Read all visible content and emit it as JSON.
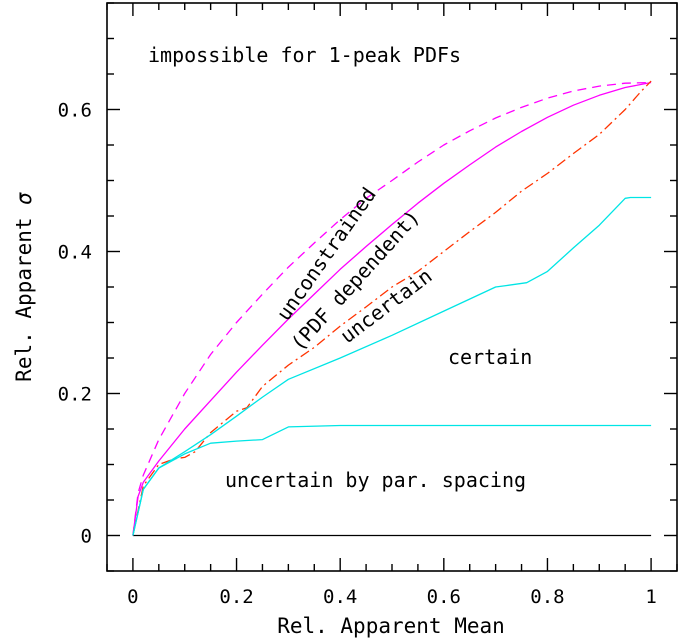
{
  "chart_data": {
    "type": "line",
    "xlabel": "Rel. Apparent Mean",
    "ylabel_text": "Rel. Apparent ",
    "ylabel_symbol": "σ",
    "xlim": [
      -0.05,
      1.05
    ],
    "ylim": [
      -0.05,
      0.75
    ],
    "x_ticks": [
      0,
      0.2,
      0.4,
      0.6,
      0.8,
      1
    ],
    "x_tick_labels": [
      "0",
      "0.2",
      "0.4",
      "0.6",
      "0.8",
      "1"
    ],
    "y_ticks": [
      0,
      0.2,
      0.4,
      0.6
    ],
    "y_tick_labels": [
      "0",
      "0.2",
      "0.4",
      "0.6"
    ],
    "x_minor_step": 0.05,
    "y_minor_step": 0.05,
    "grid": false,
    "annotations": {
      "impossible": "impossible for 1-peak PDFs",
      "unconstrained": "unconstrained",
      "pdf_dependent": "(PDF dependent)",
      "uncertain": "uncertain",
      "certain": "certain",
      "uncertain_spacing": "uncertain by par. spacing"
    },
    "series": [
      {
        "key": "baseline",
        "color": "#000000",
        "dash": "",
        "x": [
          0,
          1
        ],
        "y": [
          0,
          0
        ]
      },
      {
        "key": "dashed_magenta",
        "color": "#ff00ff",
        "dash": "9,6",
        "x": [
          0,
          0.01,
          0.02,
          0.05,
          0.1,
          0.15,
          0.2,
          0.25,
          0.3,
          0.35,
          0.4,
          0.45,
          0.5,
          0.55,
          0.6,
          0.65,
          0.7,
          0.75,
          0.8,
          0.85,
          0.9,
          0.95,
          1.0
        ],
        "y": [
          0,
          0.06,
          0.085,
          0.135,
          0.2,
          0.255,
          0.3,
          0.34,
          0.378,
          0.412,
          0.445,
          0.475,
          0.5,
          0.526,
          0.55,
          0.57,
          0.588,
          0.603,
          0.616,
          0.626,
          0.633,
          0.637,
          0.638
        ]
      },
      {
        "key": "solid_magenta",
        "color": "#ff00ff",
        "dash": "",
        "x": [
          0,
          0.01,
          0.02,
          0.05,
          0.1,
          0.15,
          0.2,
          0.25,
          0.3,
          0.35,
          0.4,
          0.45,
          0.5,
          0.55,
          0.6,
          0.65,
          0.7,
          0.75,
          0.8,
          0.85,
          0.9,
          0.95,
          1.0
        ],
        "y": [
          0,
          0.055,
          0.075,
          0.105,
          0.15,
          0.19,
          0.23,
          0.268,
          0.305,
          0.34,
          0.375,
          0.407,
          0.438,
          0.468,
          0.496,
          0.522,
          0.547,
          0.569,
          0.589,
          0.606,
          0.62,
          0.631,
          0.638
        ]
      },
      {
        "key": "dashdot_red",
        "color": "#ff3300",
        "dash": "10,4,2,4",
        "x": [
          0,
          0.02,
          0.05,
          0.08,
          0.1,
          0.12,
          0.15,
          0.2,
          0.22,
          0.25,
          0.3,
          0.35,
          0.4,
          0.45,
          0.5,
          0.55,
          0.6,
          0.65,
          0.7,
          0.75,
          0.8,
          0.85,
          0.9,
          0.95,
          0.98,
          1.0
        ],
        "y": [
          0,
          0.07,
          0.1,
          0.108,
          0.11,
          0.118,
          0.145,
          0.175,
          0.18,
          0.21,
          0.24,
          0.265,
          0.295,
          0.322,
          0.35,
          0.372,
          0.4,
          0.428,
          0.455,
          0.485,
          0.51,
          0.538,
          0.565,
          0.6,
          0.625,
          0.64
        ]
      },
      {
        "key": "cyan_upper",
        "color": "#00e5e5",
        "dash": "",
        "x": [
          0,
          0.02,
          0.05,
          0.1,
          0.15,
          0.2,
          0.25,
          0.3,
          0.4,
          0.5,
          0.6,
          0.7,
          0.72,
          0.76,
          0.8,
          0.85,
          0.9,
          0.95,
          0.96,
          1.0
        ],
        "y": [
          0,
          0.065,
          0.095,
          0.118,
          0.142,
          0.168,
          0.195,
          0.22,
          0.25,
          0.282,
          0.316,
          0.35,
          0.352,
          0.356,
          0.372,
          0.405,
          0.437,
          0.475,
          0.476,
          0.476
        ]
      },
      {
        "key": "cyan_lower",
        "color": "#00e5e5",
        "dash": "",
        "x": [
          0,
          0.02,
          0.05,
          0.1,
          0.15,
          0.2,
          0.25,
          0.3,
          0.4,
          0.6,
          0.8,
          1.0
        ],
        "y": [
          0,
          0.065,
          0.095,
          0.115,
          0.13,
          0.133,
          0.135,
          0.153,
          0.155,
          0.155,
          0.155,
          0.155
        ]
      }
    ]
  }
}
